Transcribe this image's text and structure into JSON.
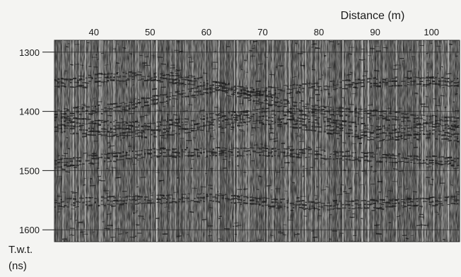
{
  "chart_data": {
    "type": "heatmap",
    "title": "",
    "xlabel": "Distance (m)",
    "ylabel_line1": "T.w.t.",
    "ylabel_line2": "(ns)",
    "x_ticks": [
      "40",
      "50",
      "60",
      "70",
      "80",
      "90",
      "100"
    ],
    "y_ticks": [
      "1300",
      "1400",
      "1500",
      "1600"
    ],
    "x_tick_values": [
      40,
      50,
      60,
      70,
      80,
      90,
      100
    ],
    "y_tick_values": [
      1300,
      1400,
      1500,
      1600
    ],
    "xlim": [
      33,
      105
    ],
    "ylim": [
      1280,
      1620
    ],
    "x_axis_position": "top",
    "y_axis_position": "left",
    "reflectors": [
      {
        "x": [
          33,
          40,
          50,
          60,
          70,
          80,
          90,
          100,
          105
        ],
        "y": [
          1422,
          1428,
          1432,
          1418,
          1408,
          1422,
          1438,
          1432,
          1440
        ]
      },
      {
        "x": [
          33,
          45,
          55,
          62,
          70,
          80,
          95,
          105
        ],
        "y": [
          1405,
          1392,
          1372,
          1358,
          1380,
          1398,
          1410,
          1418
        ]
      },
      {
        "x": [
          38,
          48,
          58,
          68,
          78,
          88,
          100,
          105
        ],
        "y": [
          1345,
          1340,
          1350,
          1368,
          1360,
          1352,
          1348,
          1352
        ]
      },
      {
        "x": [
          33,
          50,
          70,
          90,
          105
        ],
        "y": [
          1488,
          1470,
          1468,
          1478,
          1485
        ]
      },
      {
        "x": [
          33,
          60,
          80,
          105
        ],
        "y": [
          1555,
          1545,
          1560,
          1550
        ]
      }
    ],
    "colors": {
      "background": "#f4f4f2",
      "trace": "#202020",
      "axis": "#1a1a1a"
    }
  }
}
